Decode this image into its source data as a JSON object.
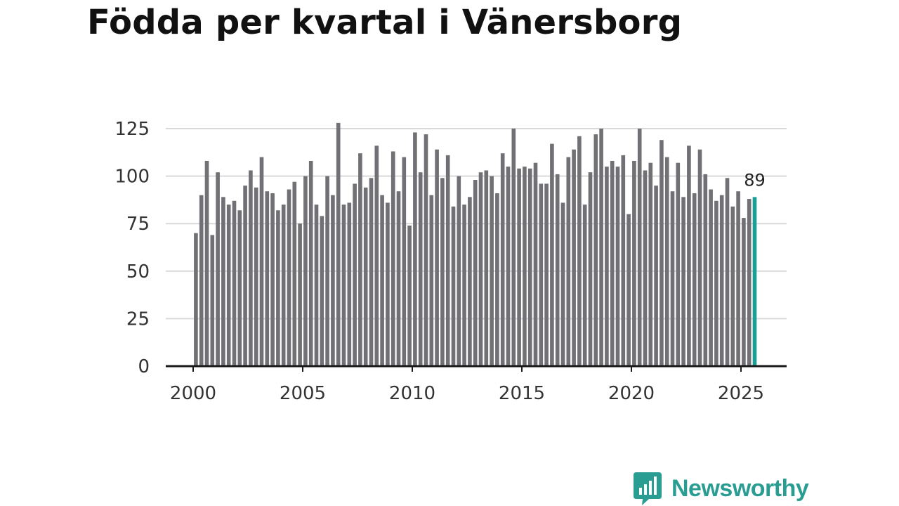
{
  "title": "Födda per kvartal i Vänersborg",
  "brand": {
    "name": "Newsworthy",
    "icon": "bar-chart-bubble-icon",
    "color": "#2a9d93"
  },
  "colors": {
    "bar": "#707075",
    "highlight": "#1a9e96",
    "grid": "#d9d9d9",
    "axis": "#1a1a1a"
  },
  "chart_data": {
    "type": "bar",
    "title": "Födda per kvartal i Vänersborg",
    "xlabel": "",
    "ylabel": "",
    "ylim": [
      0,
      125
    ],
    "yticks": [
      0,
      25,
      50,
      75,
      100,
      125
    ],
    "xticks": [
      2000,
      2005,
      2010,
      2015,
      2020,
      2025
    ],
    "x_start": 2000.0,
    "quarter_step": 0.25,
    "grid": true,
    "highlight_last": true,
    "last_label": "89",
    "values": [
      70,
      90,
      108,
      69,
      102,
      89,
      85,
      87,
      82,
      95,
      103,
      94,
      110,
      92,
      91,
      82,
      85,
      93,
      97,
      75,
      100,
      108,
      85,
      79,
      100,
      90,
      128,
      85,
      86,
      96,
      112,
      94,
      99,
      116,
      90,
      86,
      113,
      92,
      110,
      74,
      123,
      102,
      122,
      90,
      114,
      99,
      111,
      84,
      100,
      85,
      89,
      98,
      102,
      103,
      100,
      91,
      112,
      105,
      125,
      104,
      105,
      104,
      107,
      96,
      96,
      117,
      101,
      86,
      110,
      114,
      121,
      85,
      102,
      122,
      125,
      105,
      108,
      105,
      111,
      80,
      108,
      125,
      103,
      107,
      95,
      119,
      110,
      92,
      107,
      89,
      116,
      91,
      114,
      101,
      93,
      87,
      90,
      99,
      84,
      92,
      78,
      88,
      89
    ]
  }
}
